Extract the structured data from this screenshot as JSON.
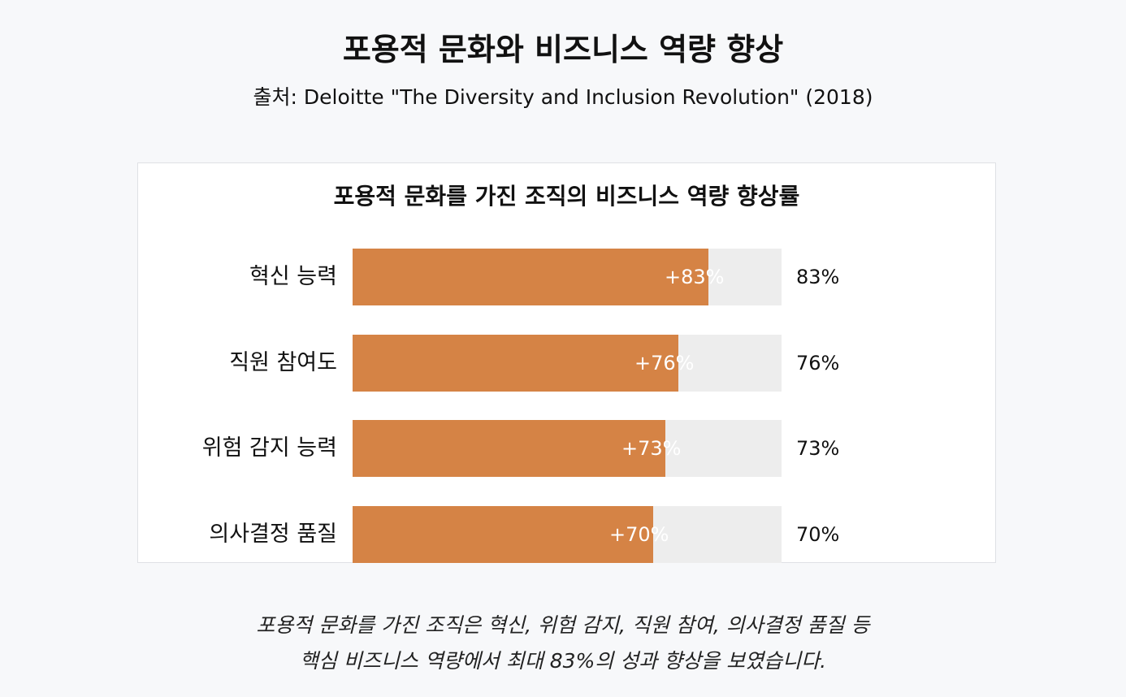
{
  "title": "포용적 문화와 비즈니스 역량 향상",
  "subtitle": "출처: Deloitte \"The Diversity and Inclusion Revolution\" (2018)",
  "chart_data": {
    "type": "bar",
    "orientation": "horizontal",
    "title": "포용적 문화를 가진 조직의 비즈니스 역량 향상률",
    "categories": [
      "혁신 능력",
      "직원 참여도",
      "위험 감지 능력",
      "의사결정 품질"
    ],
    "values": [
      83,
      76,
      73,
      70
    ],
    "bar_labels": [
      "+83%",
      "+76%",
      "+73%",
      "+70%"
    ],
    "value_labels": [
      "83%",
      "76%",
      "73%",
      "70%"
    ],
    "xlim": [
      0,
      100
    ],
    "xlabel": "",
    "ylabel": "",
    "grid": false,
    "colors": {
      "bar": "#d58345",
      "track": "#ededed"
    }
  },
  "footnote": {
    "line1": "포용적 문화를 가진 조직은 혁신, 위험 감지, 직원 참여, 의사결정 품질 등",
    "line2": "핵심 비즈니스 역량에서 최대 83%의 성과 향상을 보였습니다."
  }
}
